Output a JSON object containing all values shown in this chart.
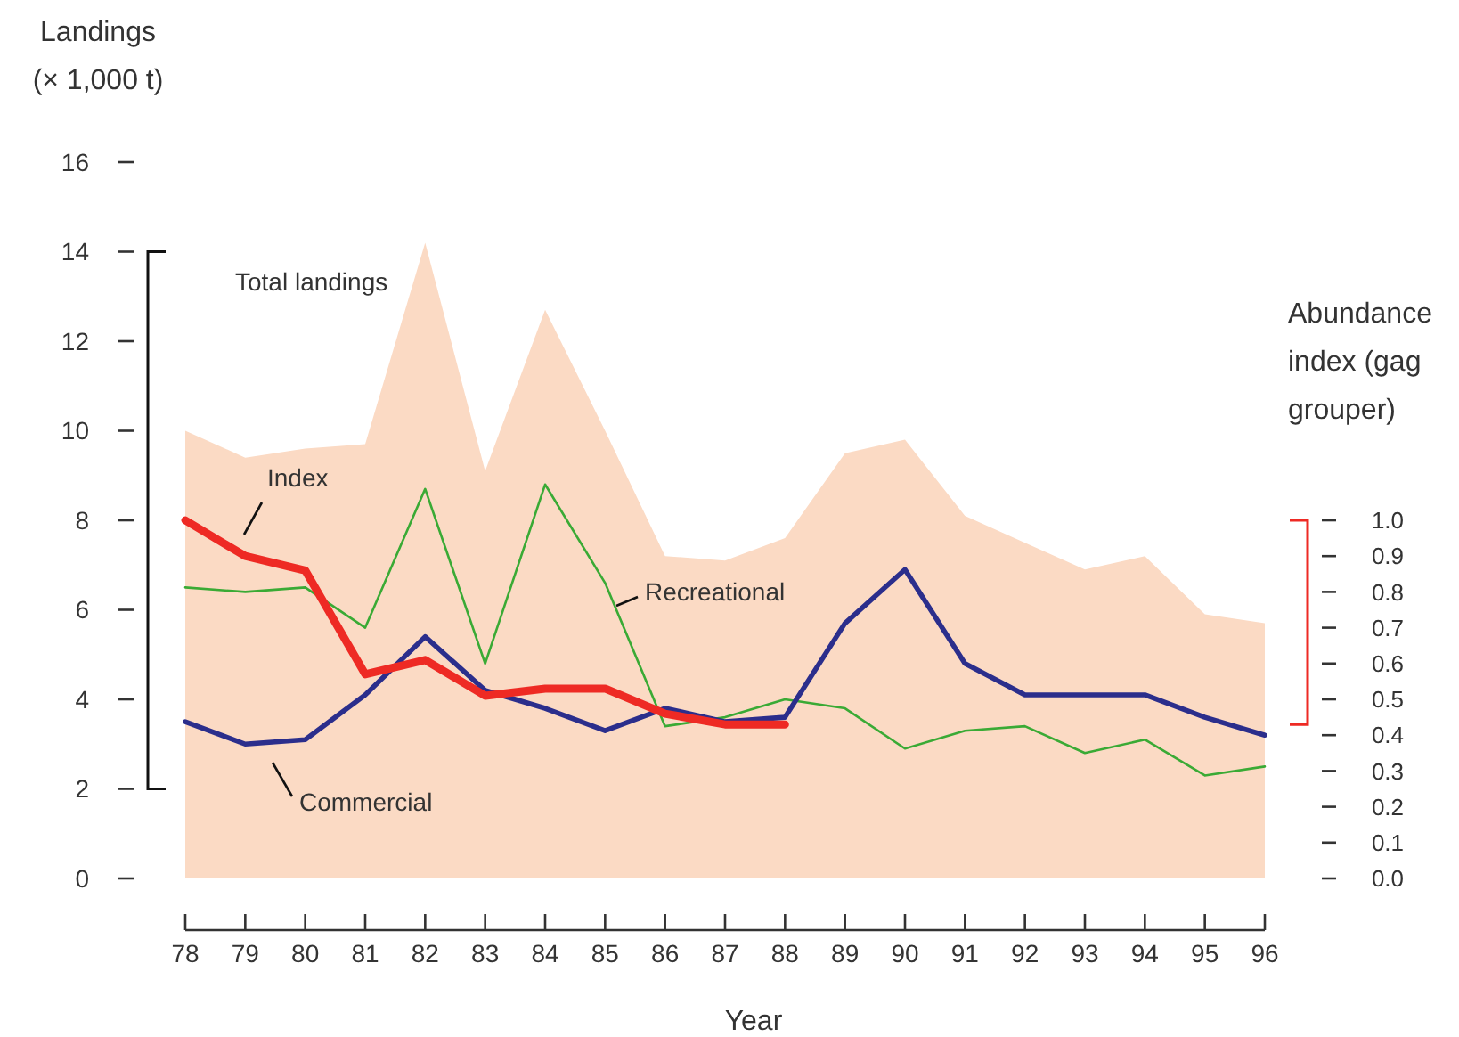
{
  "chart_data": {
    "type": "line",
    "xlabel": "Year",
    "ylabel": "Landings (× 1,000 t)",
    "y2label": "Abundance index (gag grouper)",
    "categories": [
      "78",
      "79",
      "80",
      "81",
      "82",
      "83",
      "84",
      "85",
      "86",
      "87",
      "88",
      "89",
      "90",
      "91",
      "92",
      "93",
      "94",
      "95",
      "96"
    ],
    "ylim": [
      0,
      16
    ],
    "yticks": [
      0,
      2,
      4,
      6,
      8,
      10,
      12,
      14,
      16
    ],
    "y2lim": [
      0,
      1
    ],
    "y2ticks": [
      {
        "value": 0,
        "label": "0.0"
      },
      {
        "value": 0.1,
        "label": "0.1"
      },
      {
        "value": 0.2,
        "label": "0.2"
      },
      {
        "value": 0.3,
        "label": "0.3"
      },
      {
        "value": 0.4,
        "label": "0.4"
      },
      {
        "value": 0.5,
        "label": "0.5"
      },
      {
        "value": 0.6,
        "label": "0.6"
      },
      {
        "value": 0.7,
        "label": "0.7"
      },
      {
        "value": 0.8,
        "label": "0.8"
      },
      {
        "value": 0.9,
        "label": "0.9"
      },
      {
        "value": 1,
        "label": "1.0"
      }
    ],
    "grid": false,
    "series": [
      {
        "name": "Total landings",
        "type": "area",
        "color": "#fbdac4",
        "values": [
          10.0,
          9.4,
          9.6,
          9.7,
          14.2,
          9.1,
          12.7,
          10.0,
          7.2,
          7.1,
          7.6,
          9.5,
          9.8,
          8.1,
          7.5,
          6.9,
          7.2,
          5.9,
          5.7
        ]
      },
      {
        "name": "Recreational",
        "color": "#3aaa35",
        "values": [
          6.5,
          6.4,
          6.5,
          5.6,
          8.7,
          4.8,
          8.8,
          6.6,
          3.4,
          3.6,
          4.0,
          3.8,
          2.9,
          3.3,
          3.4,
          2.8,
          3.1,
          2.3,
          2.5
        ]
      },
      {
        "name": "Commercial",
        "color": "#2b2e8c",
        "values": [
          3.5,
          3.0,
          3.1,
          4.1,
          5.4,
          4.2,
          3.8,
          3.3,
          3.8,
          3.5,
          3.6,
          5.7,
          6.9,
          4.8,
          4.1,
          4.1,
          4.1,
          3.6,
          3.2
        ]
      },
      {
        "name": "Index",
        "axis": "y2",
        "color": "#ee2a24",
        "values": [
          1.0,
          0.9,
          0.86,
          0.57,
          0.61,
          0.51,
          0.53,
          0.53,
          0.46,
          0.43,
          0.43,
          null,
          null,
          null,
          null,
          null,
          null,
          null,
          null
        ]
      }
    ]
  }
}
